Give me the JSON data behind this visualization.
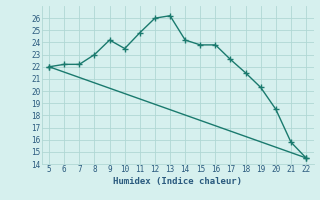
{
  "line1_x": [
    5,
    6,
    7,
    8,
    9,
    10,
    11,
    12,
    13,
    14,
    15,
    16,
    17,
    18,
    19,
    20,
    21,
    22
  ],
  "line1_y": [
    22.0,
    22.2,
    22.2,
    23.0,
    24.2,
    23.5,
    24.8,
    26.0,
    26.2,
    24.2,
    23.8,
    23.8,
    22.6,
    21.5,
    20.3,
    18.5,
    15.8,
    14.5
  ],
  "line2_x": [
    5,
    22
  ],
  "line2_y": [
    22.0,
    14.5
  ],
  "line_color": "#1a7a6e",
  "bg_color": "#d6f0ee",
  "grid_color": "#b0d8d4",
  "xlabel": "Humidex (Indice chaleur)",
  "ylim": [
    14,
    27
  ],
  "xlim": [
    4.5,
    22.5
  ],
  "yticks": [
    14,
    15,
    16,
    17,
    18,
    19,
    20,
    21,
    22,
    23,
    24,
    25,
    26
  ],
  "xticks": [
    5,
    6,
    7,
    8,
    9,
    10,
    11,
    12,
    13,
    14,
    15,
    16,
    17,
    18,
    19,
    20,
    21,
    22
  ],
  "font_color": "#2a5a7e",
  "marker": "+",
  "markersize": 4,
  "linewidth": 1.0
}
